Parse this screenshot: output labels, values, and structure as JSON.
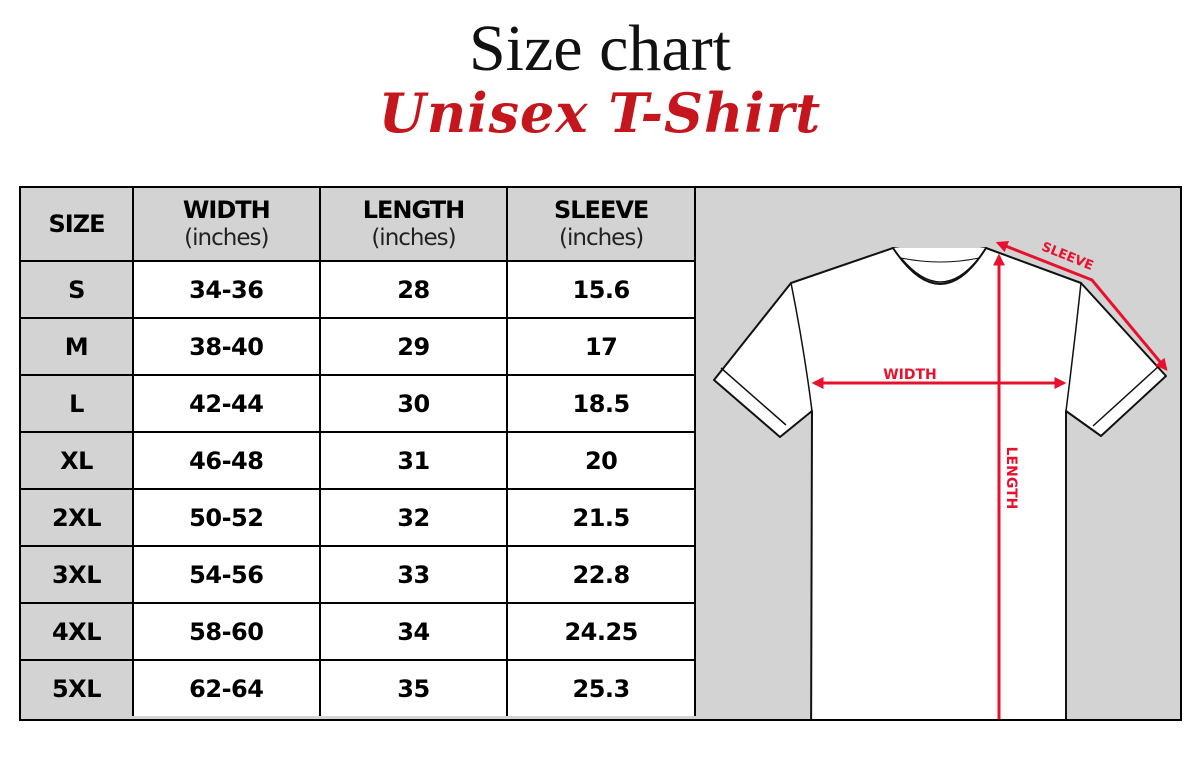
{
  "header": {
    "title": "Size chart",
    "subtitle": "Unisex T-Shirt"
  },
  "colors": {
    "accent": "#c4161c",
    "measure_lines": "#e8112d",
    "cell_gray": "#d3d3d3"
  },
  "table": {
    "columns": [
      {
        "label": "SIZE",
        "unit": ""
      },
      {
        "label": "WIDTH",
        "unit": "(inches)"
      },
      {
        "label": "LENGTH",
        "unit": "(inches)"
      },
      {
        "label": "SLEEVE",
        "unit": "(inches)"
      }
    ],
    "rows": [
      [
        "S",
        "34-36",
        "28",
        "15.6"
      ],
      [
        "M",
        "38-40",
        "29",
        "17"
      ],
      [
        "L",
        "42-44",
        "30",
        "18.5"
      ],
      [
        "XL",
        "46-48",
        "31",
        "20"
      ],
      [
        "2XL",
        "50-52",
        "32",
        "21.5"
      ],
      [
        "3XL",
        "54-56",
        "33",
        "22.8"
      ],
      [
        "4XL",
        "58-60",
        "34",
        "24.25"
      ],
      [
        "5XL",
        "62-64",
        "35",
        "25.3"
      ]
    ]
  },
  "diagram": {
    "width_label": "WIDTH",
    "length_label": "LENGTH",
    "sleeve_label": "SLEEVE"
  }
}
